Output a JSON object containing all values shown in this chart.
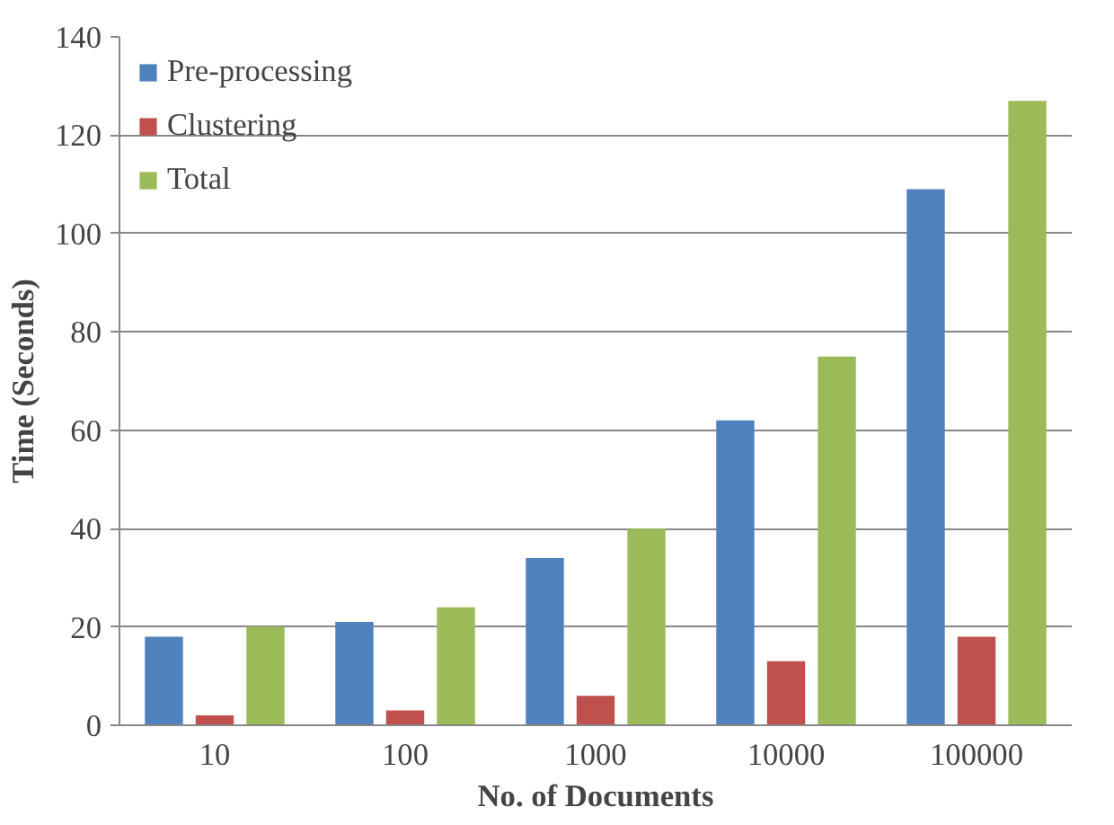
{
  "chart_data": {
    "type": "bar",
    "xlabel": "No. of Documents",
    "ylabel": "Time (Seconds)",
    "categories": [
      "10",
      "100",
      "1000",
      "10000",
      "100000"
    ],
    "series": [
      {
        "name": "Pre-processing",
        "color": "#4f81bd",
        "values": [
          18,
          21,
          34,
          62,
          109
        ]
      },
      {
        "name": "Clustering",
        "color": "#c0504d",
        "values": [
          2,
          3,
          6,
          13,
          18
        ]
      },
      {
        "name": "Total",
        "color": "#9bbb59",
        "values": [
          20,
          24,
          40,
          75,
          127
        ]
      }
    ],
    "ylim": [
      0,
      140
    ],
    "yticks": [
      0,
      20,
      40,
      60,
      80,
      100,
      120,
      140
    ],
    "grid": "y",
    "legend": "top left"
  }
}
